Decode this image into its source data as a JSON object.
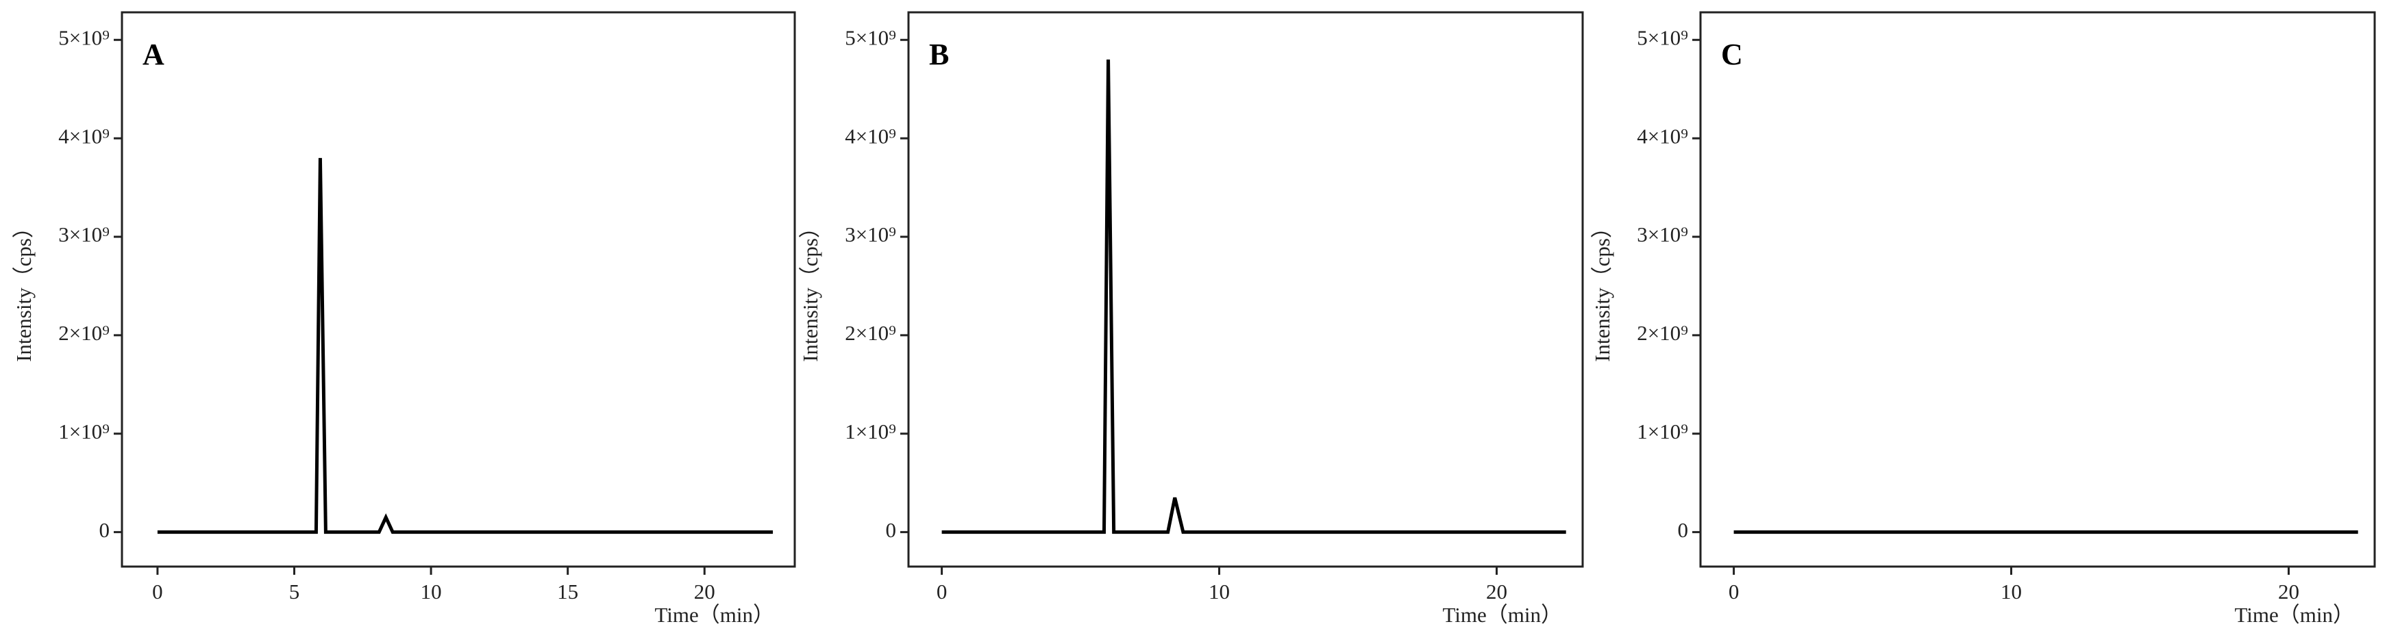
{
  "chart_data": [
    {
      "type": "line",
      "title": "A",
      "xlabel": "Time（min）",
      "ylabel": "Intensity（cps）",
      "x": [
        0,
        5.8,
        5.95,
        6.15,
        8.1,
        8.35,
        8.6,
        22.5
      ],
      "series": [
        {
          "color": "#000000",
          "values": [
            0,
            0,
            3800000000,
            0,
            0,
            150000000,
            0,
            0
          ]
        }
      ],
      "xlim": [
        -1.3,
        23.3
      ],
      "ylim": [
        -350000000,
        5280000000
      ],
      "xticks": [
        0,
        5,
        10,
        15,
        20
      ],
      "yticks": [
        0,
        {
          "value": 1000000000,
          "label": "1×10⁹"
        },
        {
          "value": 2000000000,
          "label": "2×10⁹"
        },
        {
          "value": 3000000000,
          "label": "3×10⁹"
        },
        {
          "value": 4000000000,
          "label": "4×10⁹"
        },
        {
          "value": 5000000000,
          "label": "5×10⁹"
        }
      ]
    },
    {
      "type": "line",
      "title": "B",
      "xlabel": "Time（min）",
      "ylabel": "Intensity（cps）",
      "x": [
        0,
        5.85,
        6.0,
        6.2,
        8.15,
        8.4,
        8.7,
        22.5
      ],
      "series": [
        {
          "color": "#000000",
          "values": [
            0,
            0,
            4800000000,
            0,
            0,
            350000000,
            0,
            0
          ]
        }
      ],
      "xlim": [
        -1.2,
        23.1
      ],
      "ylim": [
        -350000000,
        5280000000
      ],
      "xticks": [
        0,
        10,
        20
      ],
      "yticks": [
        0,
        {
          "value": 1000000000,
          "label": "1×10⁹"
        },
        {
          "value": 2000000000,
          "label": "2×10⁹"
        },
        {
          "value": 3000000000,
          "label": "3×10⁹"
        },
        {
          "value": 4000000000,
          "label": "4×10⁹"
        },
        {
          "value": 5000000000,
          "label": "5×10⁹"
        }
      ]
    },
    {
      "type": "line",
      "title": "C",
      "xlabel": "Time（min）",
      "ylabel": "Intensity（cps）",
      "x": [
        0,
        22.5
      ],
      "series": [
        {
          "color": "#000000",
          "values": [
            0,
            0
          ]
        }
      ],
      "xlim": [
        -1.2,
        23.1
      ],
      "ylim": [
        -350000000,
        5280000000
      ],
      "xticks": [
        0,
        10,
        20
      ],
      "yticks": [
        0,
        {
          "value": 1000000000,
          "label": "1×10⁹"
        },
        {
          "value": 2000000000,
          "label": "2×10⁹"
        },
        {
          "value": 3000000000,
          "label": "3×10⁹"
        },
        {
          "value": 4000000000,
          "label": "4×10⁹"
        },
        {
          "value": 5000000000,
          "label": "5×10⁹"
        }
      ]
    }
  ]
}
